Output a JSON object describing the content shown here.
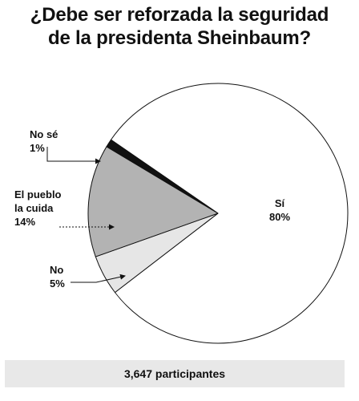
{
  "title": {
    "line1": "¿Debe ser reforzada la seguridad",
    "line2": "de la presidenta Sheinbaum?"
  },
  "chart_data": {
    "type": "pie",
    "title": "¿Debe ser reforzada la seguridad de la presidenta Sheinbaum?",
    "slices": [
      {
        "label": "Sí",
        "label_lines": [
          "Sí"
        ],
        "value": 80,
        "pct_text": "80%",
        "color": "#ffffff"
      },
      {
        "label": "No",
        "label_lines": [
          "No"
        ],
        "value": 5,
        "pct_text": "5%",
        "color": "#e6e6e6"
      },
      {
        "label": "El pueblo la cuida",
        "label_lines": [
          "El pueblo",
          "la cuida"
        ],
        "value": 14,
        "pct_text": "14%",
        "color": "#b3b3b3"
      },
      {
        "label": "No sé",
        "label_lines": [
          "No sé"
        ],
        "value": 1,
        "pct_text": "1%",
        "color": "#111111"
      }
    ]
  },
  "footer": {
    "participants": "3,647 participantes"
  }
}
